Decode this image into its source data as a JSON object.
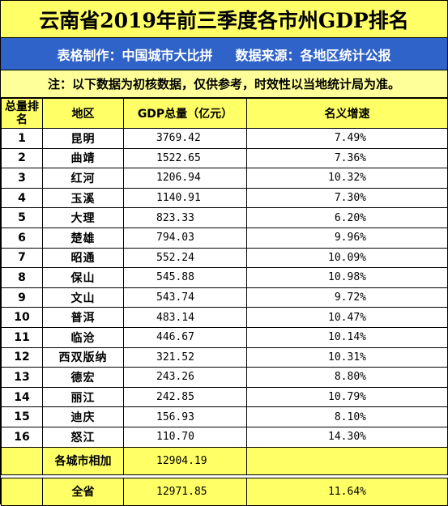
{
  "title": "云南省2019年前三季度各市州GDP排名",
  "credit": {
    "maker": "表格制作：中国城市大比拼",
    "source": "数据来源：各地区统计公报"
  },
  "note": "注：以下数据为初核数据，仅供参考，时效性以当地统计局为准。",
  "headers": {
    "rank": "总量排名",
    "region": "地区",
    "gdp": "GDP总量（亿元）",
    "growth": "名义增速"
  },
  "rows": [
    {
      "rank": "1",
      "region": "昆明",
      "gdp": "3769.42",
      "growth": "7.49%"
    },
    {
      "rank": "2",
      "region": "曲靖",
      "gdp": "1522.65",
      "growth": "7.36%"
    },
    {
      "rank": "3",
      "region": "红河",
      "gdp": "1206.94",
      "growth": "10.32%"
    },
    {
      "rank": "4",
      "region": "玉溪",
      "gdp": "1140.91",
      "growth": "7.30%"
    },
    {
      "rank": "5",
      "region": "大理",
      "gdp": "823.33",
      "growth": "6.20%"
    },
    {
      "rank": "6",
      "region": "楚雄",
      "gdp": "794.03",
      "growth": "9.96%"
    },
    {
      "rank": "7",
      "region": "昭通",
      "gdp": "552.24",
      "growth": "10.09%"
    },
    {
      "rank": "8",
      "region": "保山",
      "gdp": "545.88",
      "growth": "10.98%"
    },
    {
      "rank": "9",
      "region": "文山",
      "gdp": "543.74",
      "growth": "9.72%"
    },
    {
      "rank": "10",
      "region": "普洱",
      "gdp": "483.14",
      "growth": "10.47%"
    },
    {
      "rank": "11",
      "region": "临沧",
      "gdp": "446.67",
      "growth": "10.14%"
    },
    {
      "rank": "12",
      "region": "西双版纳",
      "gdp": "321.52",
      "growth": "10.31%"
    },
    {
      "rank": "13",
      "region": "德宏",
      "gdp": "243.26",
      "growth": "8.80%"
    },
    {
      "rank": "14",
      "region": "丽江",
      "gdp": "242.85",
      "growth": "10.79%"
    },
    {
      "rank": "15",
      "region": "迪庆",
      "gdp": "156.93",
      "growth": "8.10%"
    },
    {
      "rank": "16",
      "region": "怒江",
      "gdp": "110.70",
      "growth": "14.30%"
    }
  ],
  "subtotal": {
    "label": "各城市相加",
    "gdp": "12904.19",
    "growth": ""
  },
  "total": {
    "label": "全省",
    "gdp": "12971.85",
    "growth": "11.64%"
  },
  "colors": {
    "title_bg": "#ffff66",
    "credit_bg": "#2f63c9",
    "note_bg": "#ffff99",
    "rank_bg": "#b7dde8"
  }
}
